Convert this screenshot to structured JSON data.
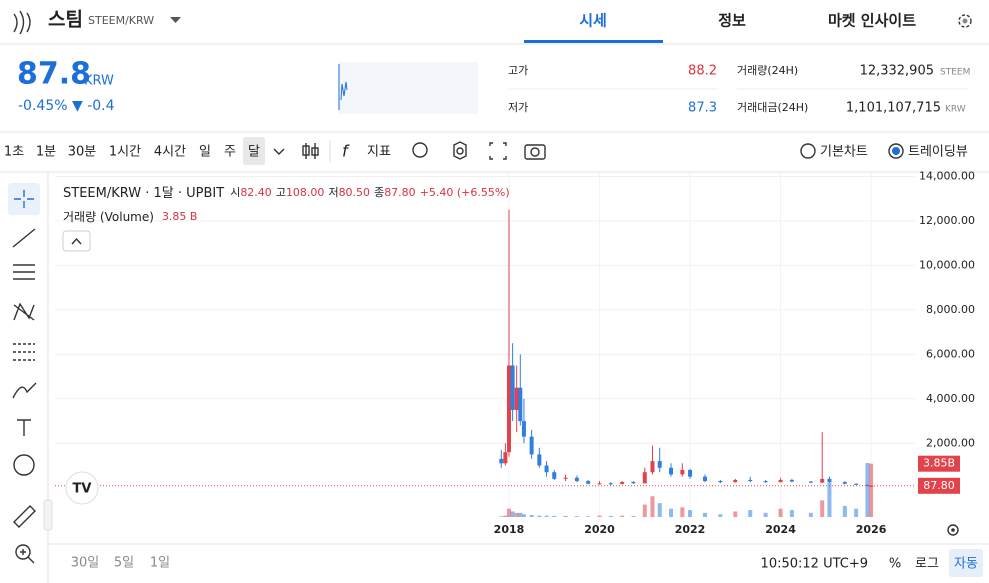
{
  "header": {
    "coin_name": "스팀",
    "market": "STEEM/KRW",
    "tabs": [
      "시세",
      "정보",
      "마켓 인사이트"
    ]
  },
  "price": {
    "value": "87.8",
    "unit": "KRW",
    "change_rate": "-0.45%",
    "change_amount": "▼ -0.4"
  },
  "stats": {
    "high": {
      "label": "고가",
      "value": "88.2"
    },
    "low": {
      "label": "저가",
      "value": "87.3"
    },
    "volume": {
      "label": "거래량(24H)",
      "value": "12,332,905",
      "unit": "STEEM"
    },
    "amount": {
      "label": "거래대금(24H)",
      "value": "1,101,107,715",
      "unit": "KRW"
    }
  },
  "toolbar": {
    "intervals": [
      "1초",
      "1분",
      "30분",
      "1시간",
      "4시간",
      "일",
      "주",
      "달"
    ],
    "indicator": "지표",
    "modes": [
      "기본차트",
      "트레이딩뷰"
    ]
  },
  "legend": {
    "symbol": "STEEM/KRW · 1달 · UPBIT",
    "ohlc_labels": [
      "시",
      "고",
      "저",
      "종"
    ],
    "open": "82.40",
    "high": "108.00",
    "low": "80.50",
    "close": "87.80",
    "change": "+5.40 (+6.55%)",
    "volume_title": "거래량 (Volume)",
    "volume_value": "3.85 B"
  },
  "chart_data": {
    "type": "candlestick",
    "x": [
      2017.83,
      2017.92,
      2018.0,
      2018.08,
      2018.17,
      2018.25,
      2018.33,
      2018.5,
      2018.67,
      2018.83,
      2019.0,
      2019.25,
      2019.5,
      2019.75,
      2020.0,
      2020.25,
      2020.5,
      2020.75,
      2021.0,
      2021.17,
      2021.33,
      2021.58,
      2021.83,
      2022.0,
      2022.33,
      2022.67,
      2023.0,
      2023.33,
      2023.67,
      2024.0,
      2024.25,
      2024.67,
      2024.92,
      2025.08,
      2025.42,
      2025.67,
      2025.92,
      2026.0
    ],
    "open": [
      1300,
      1100,
      1600,
      5500,
      3500,
      4500,
      3000,
      2300,
      1500,
      1000,
      700,
      400,
      450,
      300,
      180,
      200,
      170,
      260,
      200,
      700,
      1200,
      900,
      600,
      800,
      500,
      300,
      250,
      350,
      300,
      250,
      350,
      280,
      230,
      400,
      260,
      180,
      130,
      82.4
    ],
    "high": [
      1700,
      2000,
      12500,
      6500,
      5500,
      6000,
      4000,
      2600,
      1800,
      1200,
      800,
      600,
      550,
      350,
      300,
      260,
      300,
      300,
      900,
      1900,
      1800,
      1100,
      1100,
      850,
      600,
      350,
      400,
      500,
      350,
      450,
      400,
      300,
      2500,
      500,
      300,
      200,
      150,
      108
    ],
    "low": [
      900,
      1000,
      1400,
      3000,
      2500,
      2800,
      2000,
      1300,
      900,
      500,
      350,
      300,
      250,
      150,
      140,
      120,
      150,
      180,
      190,
      600,
      700,
      500,
      500,
      400,
      250,
      200,
      230,
      250,
      220,
      240,
      250,
      200,
      220,
      230,
      150,
      120,
      82,
      80.5
    ],
    "close": [
      1100,
      1600,
      5500,
      3500,
      4500,
      3000,
      2300,
      1500,
      1000,
      700,
      400,
      450,
      300,
      180,
      200,
      170,
      260,
      200,
      700,
      1200,
      900,
      600,
      800,
      500,
      300,
      250,
      350,
      300,
      250,
      350,
      280,
      230,
      400,
      260,
      180,
      130,
      95,
      87.8
    ],
    "volume": [
      0.05,
      0.1,
      0.6,
      0.4,
      0.3,
      0.3,
      0.2,
      0.15,
      0.1,
      0.1,
      0.08,
      0.08,
      0.06,
      0.05,
      0.1,
      0.08,
      0.1,
      0.08,
      0.9,
      1.5,
      1.0,
      0.6,
      0.7,
      0.5,
      0.3,
      0.2,
      0.4,
      0.5,
      0.3,
      0.6,
      0.5,
      0.3,
      1.2,
      2.5,
      0.8,
      0.6,
      3.9,
      3.85
    ],
    "volume_label": "3.85B",
    "last_price_label": "87.80",
    "up_color": "#e0434b",
    "down_color": "#2f7fe0",
    "xlim": [
      2007.97,
      2026.97
    ],
    "xticks": [
      2018,
      2020,
      2022,
      2024,
      2026
    ],
    "ylim": [
      -1450,
      14200
    ],
    "yticks": [
      {
        "value": 2000,
        "label": "2,000.00"
      },
      {
        "value": 4000,
        "label": "4,000.00"
      },
      {
        "value": 6000,
        "label": "6,000.00"
      },
      {
        "value": 8000,
        "label": "8,000.00"
      },
      {
        "value": 10000,
        "label": "10,000.00"
      },
      {
        "value": 12000,
        "label": "12,000.00"
      },
      {
        "value": 14000,
        "label": "14,000.00"
      }
    ],
    "grid": true
  },
  "footer": {
    "ranges": [
      "30일",
      "5일",
      "1일"
    ],
    "time": "10:50:12 UTC+9",
    "scale_options": [
      "%",
      "로그",
      "자동"
    ]
  }
}
